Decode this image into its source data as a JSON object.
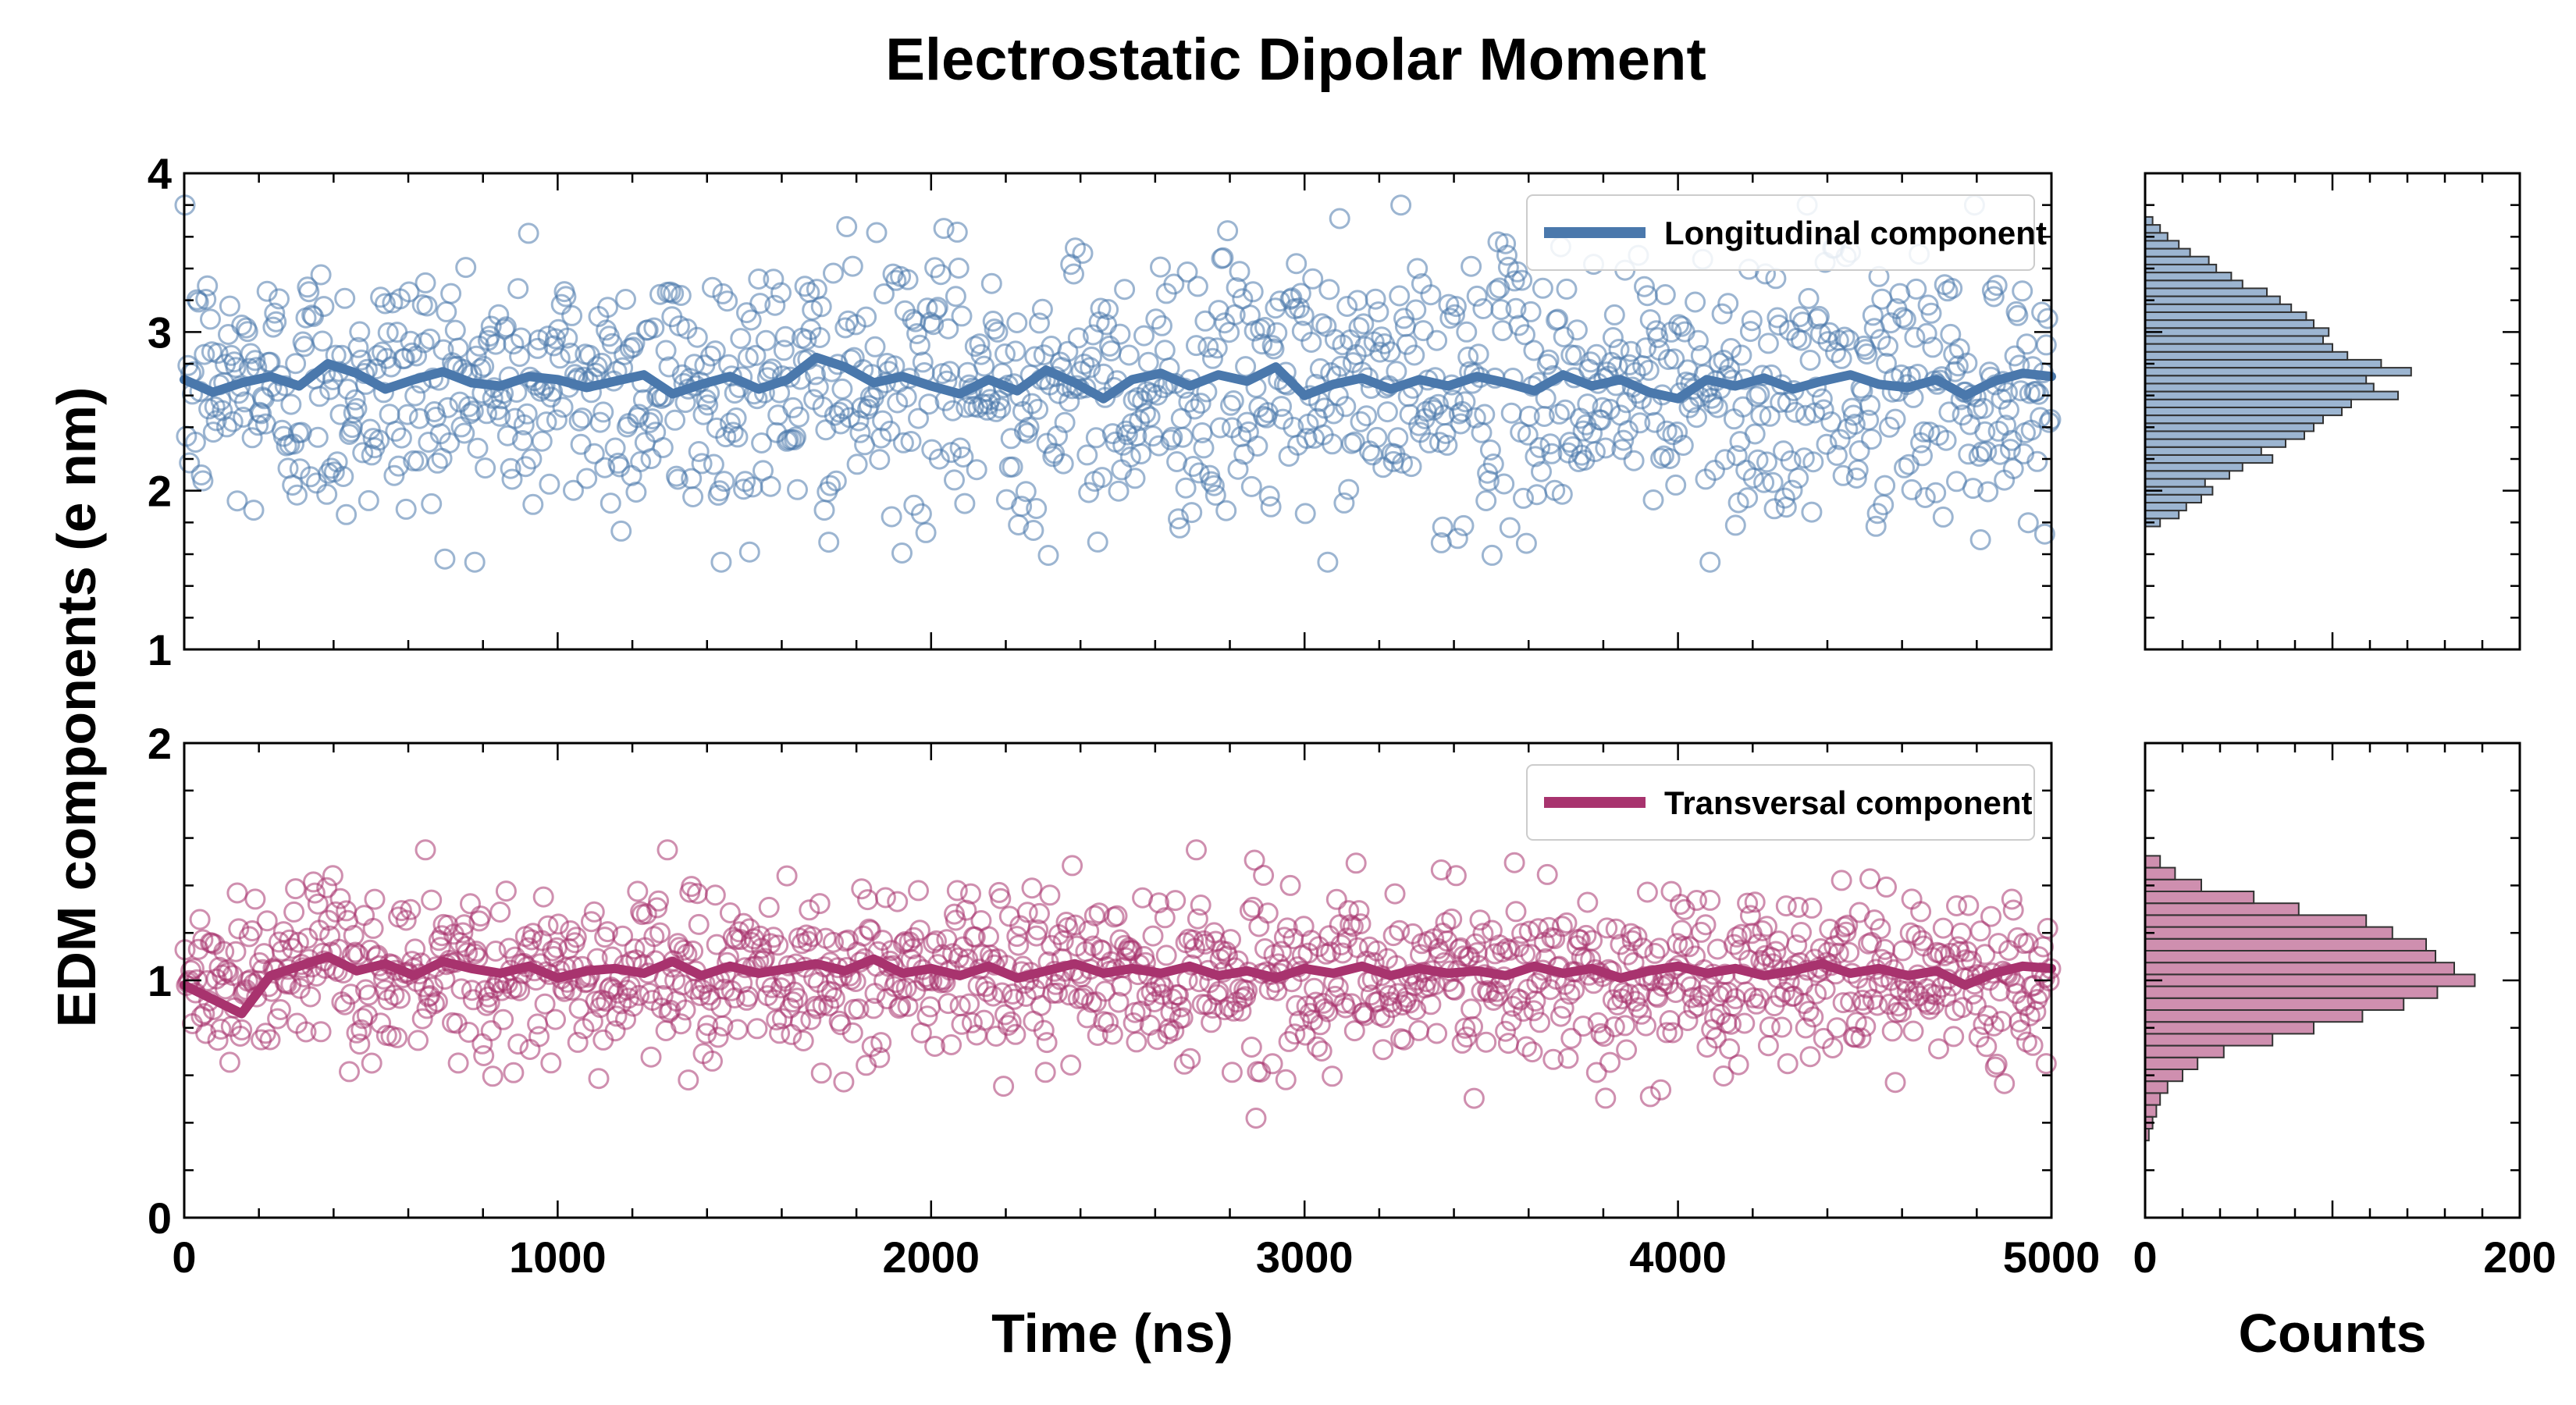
{
  "chart_data": {
    "type": "scatter",
    "title": "Electrostatic Dipolar Moment",
    "ylabel": "EDM components (e nm)",
    "xlabel": "Time (ns)",
    "xlim": [
      0,
      5000
    ],
    "xticks": [
      0,
      1000,
      2000,
      3000,
      4000,
      5000
    ],
    "grid": false,
    "panels": [
      {
        "series_name": "Longitudinal component",
        "color": "#4a78ac",
        "ylim": [
          1,
          4
        ],
        "yticks": [
          1,
          2,
          3,
          4
        ],
        "legend_position": "top-right",
        "points": {
          "count": 1250,
          "mean": 2.65,
          "std": 0.42,
          "clip": [
            1.55,
            3.8
          ]
        },
        "running_mean": [
          2.7,
          2.62,
          2.68,
          2.72,
          2.66,
          2.8,
          2.74,
          2.64,
          2.7,
          2.75,
          2.68,
          2.66,
          2.72,
          2.7,
          2.65,
          2.69,
          2.73,
          2.61,
          2.67,
          2.72,
          2.64,
          2.7,
          2.84,
          2.78,
          2.68,
          2.72,
          2.66,
          2.61,
          2.7,
          2.63,
          2.76,
          2.68,
          2.58,
          2.7,
          2.74,
          2.66,
          2.73,
          2.69,
          2.78,
          2.6,
          2.67,
          2.71,
          2.64,
          2.7,
          2.66,
          2.72,
          2.68,
          2.63,
          2.73,
          2.66,
          2.7,
          2.62,
          2.58,
          2.7,
          2.66,
          2.71,
          2.64,
          2.69,
          2.73,
          2.67,
          2.65,
          2.7,
          2.6,
          2.69,
          2.74,
          2.72
        ],
        "histogram": {
          "bins": [
            1.8,
            1.85,
            1.9,
            1.95,
            2.0,
            2.05,
            2.1,
            2.15,
            2.2,
            2.25,
            2.3,
            2.35,
            2.4,
            2.45,
            2.5,
            2.55,
            2.6,
            2.65,
            2.7,
            2.75,
            2.8,
            2.85,
            2.9,
            2.95,
            3.0,
            3.05,
            3.1,
            3.15,
            3.2,
            3.25,
            3.3,
            3.35,
            3.4,
            3.45,
            3.5,
            3.55,
            3.6,
            3.65,
            3.7
          ],
          "counts": [
            8,
            18,
            22,
            30,
            36,
            32,
            45,
            52,
            68,
            62,
            75,
            85,
            90,
            95,
            105,
            110,
            135,
            122,
            118,
            142,
            126,
            108,
            100,
            95,
            98,
            90,
            86,
            78,
            72,
            65,
            52,
            46,
            38,
            34,
            24,
            18,
            12,
            8,
            4
          ]
        }
      },
      {
        "series_name": "Transversal component",
        "color": "#a8336e",
        "ylim": [
          0,
          2
        ],
        "yticks": [
          0,
          1,
          2
        ],
        "legend_position": "top-right",
        "points": {
          "count": 1250,
          "mean": 1.02,
          "std": 0.18,
          "clip": [
            0.28,
            1.55
          ]
        },
        "running_mean": [
          0.98,
          0.92,
          0.86,
          1.02,
          1.06,
          1.1,
          1.04,
          1.07,
          1.02,
          1.08,
          1.05,
          1.03,
          1.06,
          1.01,
          1.04,
          1.05,
          1.03,
          1.08,
          1.02,
          1.06,
          1.03,
          1.05,
          1.07,
          1.04,
          1.09,
          1.03,
          1.05,
          1.02,
          1.06,
          1.01,
          1.04,
          1.07,
          1.03,
          1.05,
          1.03,
          1.06,
          1.02,
          1.04,
          1.01,
          1.05,
          1.03,
          1.06,
          1.02,
          1.05,
          1.03,
          1.04,
          1.02,
          1.06,
          1.03,
          1.05,
          1.01,
          1.04,
          1.06,
          1.03,
          1.05,
          1.02,
          1.04,
          1.07,
          1.03,
          1.05,
          1.02,
          1.04,
          0.98,
          1.03,
          1.06,
          1.05
        ],
        "histogram": {
          "bins": [
            0.35,
            0.4,
            0.45,
            0.5,
            0.55,
            0.6,
            0.65,
            0.7,
            0.75,
            0.8,
            0.85,
            0.9,
            0.95,
            1.0,
            1.05,
            1.1,
            1.15,
            1.2,
            1.25,
            1.3,
            1.35,
            1.4,
            1.45,
            1.5
          ],
          "counts": [
            2,
            4,
            6,
            8,
            12,
            20,
            28,
            42,
            68,
            90,
            116,
            138,
            156,
            176,
            165,
            155,
            150,
            132,
            118,
            82,
            58,
            30,
            16,
            8
          ]
        }
      }
    ],
    "histograms": {
      "xlabel": "Counts",
      "xlim": [
        0,
        200
      ],
      "xticks": [
        0,
        200
      ]
    }
  }
}
